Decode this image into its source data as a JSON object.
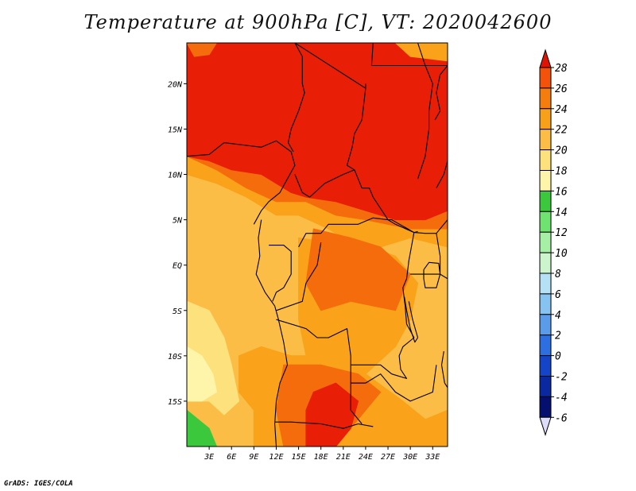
{
  "title": "Temperature at 900hPa [C], VT: 2020042600",
  "credit": "GrADS: IGES/COLA",
  "map": {
    "lon_range": [
      0,
      35
    ],
    "lat_range": [
      -20,
      24.5
    ],
    "lon_ticks": [
      {
        "value": 3,
        "label": "3E"
      },
      {
        "value": 6,
        "label": "6E"
      },
      {
        "value": 9,
        "label": "9E"
      },
      {
        "value": 12,
        "label": "12E"
      },
      {
        "value": 15,
        "label": "15E"
      },
      {
        "value": 18,
        "label": "18E"
      },
      {
        "value": 21,
        "label": "21E"
      },
      {
        "value": 24,
        "label": "24E"
      },
      {
        "value": 27,
        "label": "27E"
      },
      {
        "value": 30,
        "label": "30E"
      },
      {
        "value": 33,
        "label": "33E"
      }
    ],
    "lat_ticks": [
      {
        "value": 20,
        "label": "20N"
      },
      {
        "value": 15,
        "label": "15N"
      },
      {
        "value": 10,
        "label": "10N"
      },
      {
        "value": 5,
        "label": "5N"
      },
      {
        "value": 0,
        "label": "EQ"
      },
      {
        "value": -5,
        "label": "5S"
      },
      {
        "value": -10,
        "label": "10S"
      },
      {
        "value": -15,
        "label": "15S"
      }
    ],
    "colors": {
      "c14_16": "#3cc83c",
      "c16_18": "#fff5aa",
      "c18_20": "#fde17d",
      "c20_22": "#fbbd45",
      "c22_24": "#f9a21a",
      "c24_26": "#f56c0c",
      "c26_28": "#e81e06",
      "outline": "#000000"
    }
  },
  "colorbar": {
    "labels": [
      "28",
      "26",
      "24",
      "22",
      "20",
      "18",
      "16",
      "14",
      "12",
      "10",
      "8",
      "6",
      "4",
      "2",
      "0",
      "-2",
      "-4",
      "-6"
    ],
    "colors": [
      "#e01405",
      "#f2520a",
      "#f57d0d",
      "#f8a01a",
      "#fbbd45",
      "#fde17d",
      "#fff5aa",
      "#3cc83c",
      "#6fe36f",
      "#a6f0a6",
      "#cdf5cd",
      "#b4e1f5",
      "#87c3f0",
      "#5a9bea",
      "#2d6fe0",
      "#1445c8",
      "#0a28a0",
      "#05106e",
      "#020a46"
    ],
    "over_color": "#e01405",
    "under_color": "#ddddfa"
  }
}
